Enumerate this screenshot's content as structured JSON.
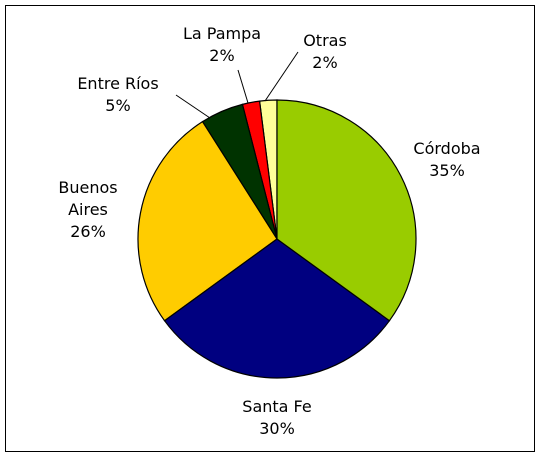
{
  "chart_data": {
    "type": "pie",
    "categories": [
      "Córdoba",
      "Santa Fe",
      "Buenos Aires",
      "Entre Ríos",
      "La Pampa",
      "Otras"
    ],
    "values": [
      35,
      30,
      26,
      5,
      2,
      2
    ],
    "value_labels": [
      "35%",
      "30%",
      "26%",
      "5%",
      "2%",
      "2%"
    ],
    "colors": [
      "#99cc00",
      "#000080",
      "#ffcc00",
      "#003300",
      "#ff0000",
      "#ffff99"
    ]
  }
}
